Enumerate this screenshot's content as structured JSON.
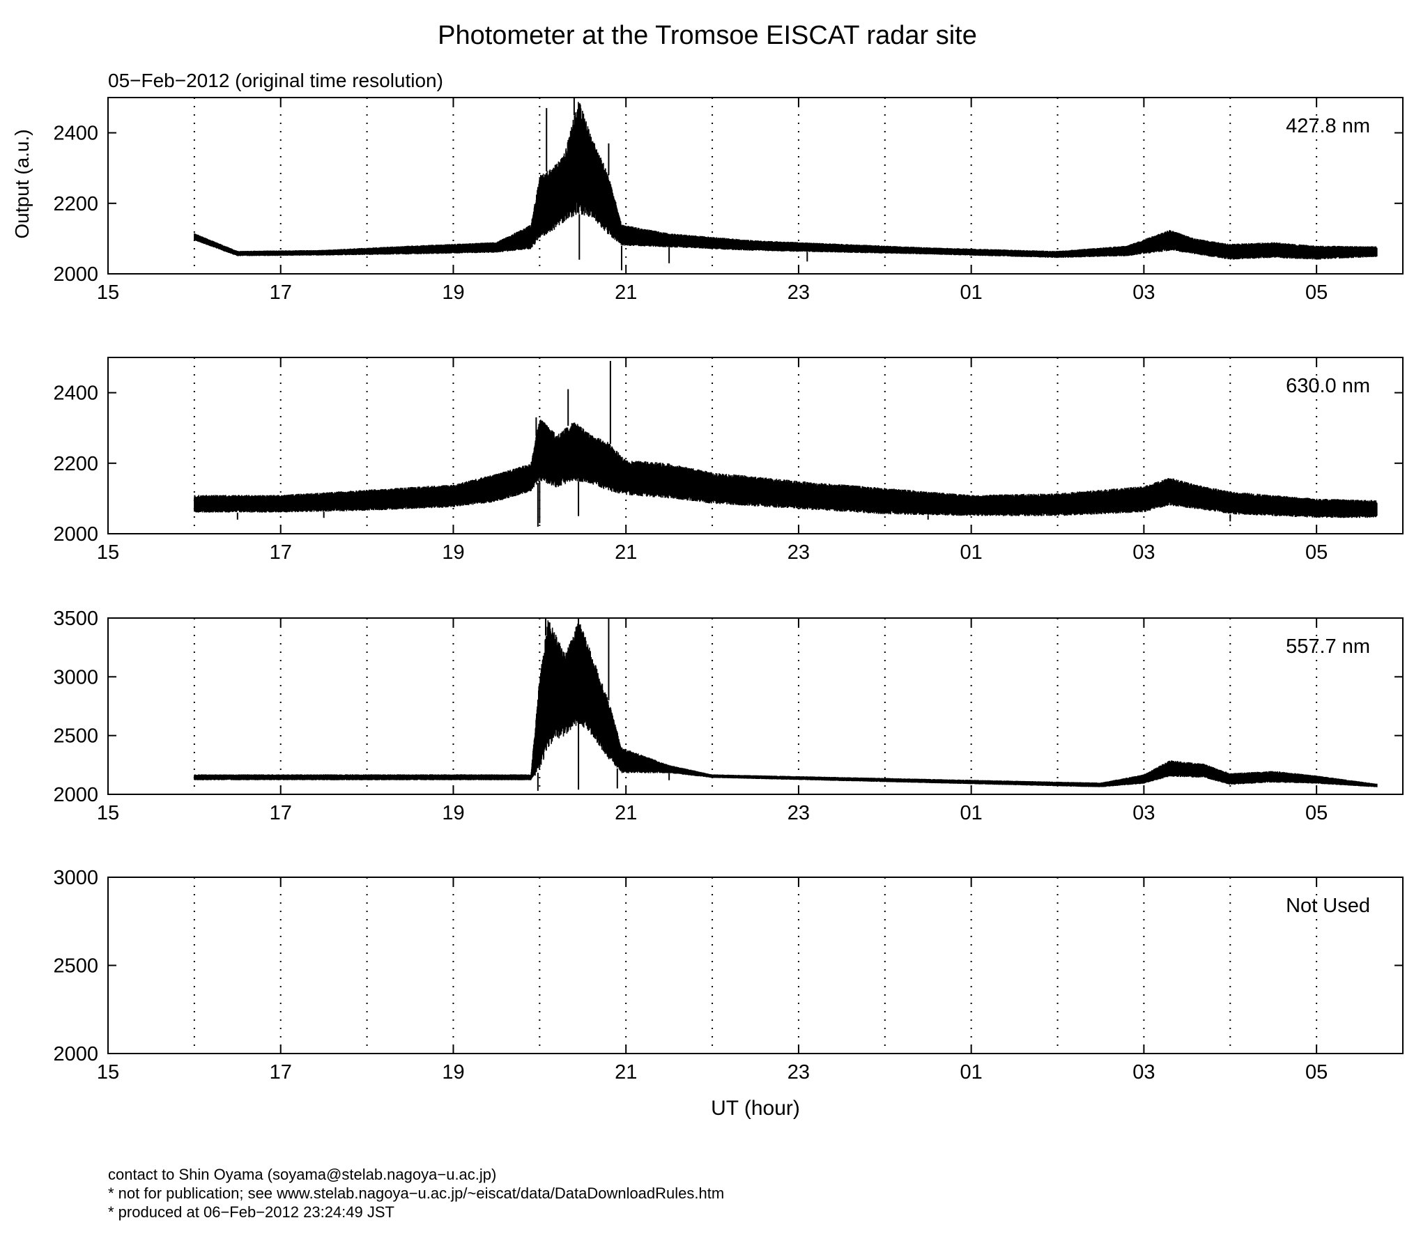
{
  "title": "Photometer at the Tromsoe EISCAT radar site",
  "subtitle": "05−Feb−2012 (original time resolution)",
  "ylabel": "Output (a.u.)",
  "xlabel": "UT (hour)",
  "footer": [
    "contact to Shin Oyama (soyama@stelab.nagoya−u.ac.jp)",
    "* not for publication; see www.stelab.nagoya−u.ac.jp/~eiscat/data/DataDownloadRules.htm",
    "* produced at 06−Feb−2012 23:24:49 JST"
  ],
  "chart_data": [
    {
      "type": "line",
      "label": "427.8 nm",
      "xlim": [
        15,
        30
      ],
      "ylim": [
        2000,
        2500
      ],
      "yticks": [
        2000,
        2200,
        2400
      ],
      "xticks": [
        "15",
        "17",
        "19",
        "21",
        "23",
        "01",
        "03",
        "05"
      ],
      "grid": "dotted vertical, hourly",
      "x": [
        16.0,
        16.1,
        16.3,
        16.5,
        17.0,
        17.5,
        18.0,
        18.5,
        19.0,
        19.5,
        19.8,
        19.9,
        19.95,
        20.0,
        20.1,
        20.2,
        20.3,
        20.4,
        20.45,
        20.5,
        20.6,
        20.7,
        20.8,
        20.9,
        21.0,
        21.5,
        22.0,
        22.5,
        23.0,
        23.5,
        24.0,
        25.0,
        26.0,
        26.5,
        27.0,
        27.2,
        27.3,
        27.5,
        27.7,
        27.8,
        28.0,
        28.2,
        28.4,
        28.5,
        28.7,
        29.0,
        29.4,
        29.7
      ],
      "y": [
        2105,
        2080,
        2065,
        2058,
        2055,
        2060,
        2065,
        2068,
        2070,
        2075,
        2080,
        2090,
        2200,
        2230,
        2180,
        2190,
        2240,
        2300,
        2400,
        2270,
        2290,
        2230,
        2180,
        2140,
        2100,
        2095,
        2085,
        2078,
        2072,
        2068,
        2063,
        2058,
        2055,
        2058,
        2065,
        2075,
        2110,
        2080,
        2090,
        2070,
        2065,
        2045,
        2070,
        2075,
        2060,
        2062,
        2058,
        2062
      ],
      "envelope": [
        [
          16.0,
          2095,
          2115
        ],
        [
          16.5,
          2050,
          2065
        ],
        [
          17.5,
          2052,
          2068
        ],
        [
          18.5,
          2055,
          2080
        ],
        [
          19.5,
          2060,
          2090
        ],
        [
          19.9,
          2070,
          2140
        ],
        [
          20.0,
          2100,
          2280
        ],
        [
          20.15,
          2120,
          2300
        ],
        [
          20.3,
          2150,
          2350
        ],
        [
          20.45,
          2170,
          2500
        ],
        [
          20.6,
          2160,
          2390
        ],
        [
          20.8,
          2110,
          2280
        ],
        [
          20.95,
          2080,
          2140
        ],
        [
          21.5,
          2075,
          2115
        ],
        [
          22.5,
          2065,
          2095
        ],
        [
          23.5,
          2060,
          2085
        ],
        [
          24.5,
          2055,
          2075
        ],
        [
          26.0,
          2045,
          2065
        ],
        [
          26.8,
          2050,
          2080
        ],
        [
          27.3,
          2065,
          2125
        ],
        [
          27.6,
          2055,
          2100
        ],
        [
          28.0,
          2040,
          2085
        ],
        [
          28.5,
          2045,
          2090
        ],
        [
          29.0,
          2040,
          2080
        ],
        [
          29.7,
          2048,
          2078
        ]
      ],
      "spikes": [
        [
          20.08,
          2470
        ],
        [
          20.4,
          2500
        ],
        [
          20.57,
          2390
        ],
        [
          20.8,
          2370
        ],
        [
          20.46,
          2040
        ],
        [
          20.95,
          2010
        ],
        [
          21.5,
          2030
        ],
        [
          23.1,
          2035
        ]
      ]
    },
    {
      "type": "line",
      "label": "630.0 nm",
      "xlim": [
        15,
        30
      ],
      "ylim": [
        2000,
        2500
      ],
      "yticks": [
        2000,
        2200,
        2400
      ],
      "xticks": [
        "15",
        "17",
        "19",
        "21",
        "23",
        "01",
        "03",
        "05"
      ],
      "grid": "dotted vertical, hourly",
      "x": [
        16.0,
        17.0,
        18.0,
        19.0,
        19.5,
        19.9,
        20.0,
        20.2,
        20.4,
        20.6,
        20.8,
        21.0,
        21.5,
        22.0,
        23.0,
        24.0,
        25.0,
        26.0,
        27.0,
        27.3,
        27.6,
        28.0,
        29.0,
        29.7
      ],
      "y": [
        2080,
        2080,
        2090,
        2100,
        2120,
        2160,
        2240,
        2180,
        2200,
        2200,
        2170,
        2160,
        2150,
        2130,
        2110,
        2095,
        2080,
        2085,
        2100,
        2120,
        2100,
        2090,
        2070,
        2065
      ],
      "envelope": [
        [
          16.0,
          2060,
          2110
        ],
        [
          17.0,
          2060,
          2110
        ],
        [
          18.0,
          2065,
          2125
        ],
        [
          19.0,
          2075,
          2140
        ],
        [
          19.5,
          2090,
          2170
        ],
        [
          19.9,
          2120,
          2200
        ],
        [
          20.0,
          2150,
          2330
        ],
        [
          20.2,
          2130,
          2280
        ],
        [
          20.4,
          2150,
          2320
        ],
        [
          20.6,
          2140,
          2280
        ],
        [
          20.8,
          2120,
          2260
        ],
        [
          21.0,
          2110,
          2210
        ],
        [
          21.5,
          2100,
          2200
        ],
        [
          22.0,
          2085,
          2175
        ],
        [
          23.0,
          2070,
          2150
        ],
        [
          24.0,
          2055,
          2130
        ],
        [
          25.0,
          2050,
          2110
        ],
        [
          26.0,
          2050,
          2115
        ],
        [
          27.0,
          2060,
          2135
        ],
        [
          27.3,
          2080,
          2160
        ],
        [
          27.6,
          2070,
          2140
        ],
        [
          28.0,
          2055,
          2120
        ],
        [
          29.0,
          2045,
          2100
        ],
        [
          29.7,
          2045,
          2095
        ]
      ],
      "spikes": [
        [
          20.33,
          2410
        ],
        [
          20.82,
          2490
        ],
        [
          19.96,
          2330
        ],
        [
          19.98,
          2020
        ],
        [
          20.45,
          2050
        ],
        [
          16.5,
          2040
        ],
        [
          17.5,
          2045
        ],
        [
          24.5,
          2040
        ],
        [
          28.0,
          2035
        ],
        [
          20.0,
          2030
        ]
      ]
    },
    {
      "type": "line",
      "label": "557.7 nm",
      "xlim": [
        15,
        30
      ],
      "ylim": [
        2000,
        3500
      ],
      "yticks": [
        2000,
        2500,
        3000,
        3500
      ],
      "xticks": [
        "15",
        "17",
        "19",
        "21",
        "23",
        "01",
        "03",
        "05"
      ],
      "grid": "dotted vertical, hourly",
      "x": [
        16.0,
        17.0,
        17.5,
        18.0,
        18.5,
        19.0,
        19.5,
        19.9,
        20.0,
        20.05,
        20.1,
        20.2,
        20.3,
        20.35,
        20.4,
        20.5,
        20.6,
        20.7,
        20.8,
        20.9,
        21.0,
        21.5,
        22.0,
        23.0,
        24.0,
        25.0,
        26.0,
        26.5,
        27.0,
        27.3,
        27.5,
        27.7,
        27.9,
        28.0,
        28.3,
        28.5,
        29.0,
        29.7
      ],
      "y": [
        2075,
        2075,
        2085,
        2105,
        2115,
        2105,
        2125,
        2150,
        2600,
        2900,
        2700,
        2800,
        2750,
        3050,
        3000,
        2950,
        3000,
        2750,
        2600,
        2450,
        2200,
        2210,
        2150,
        2120,
        2095,
        2080,
        2075,
        2080,
        2130,
        2230,
        2180,
        2210,
        2130,
        2120,
        2140,
        2170,
        2130,
        2075
      ],
      "envelope": [
        [
          19.9,
          2120,
          2170
        ],
        [
          20.0,
          2200,
          3000
        ],
        [
          20.1,
          2400,
          3500
        ],
        [
          20.3,
          2500,
          3200
        ],
        [
          20.45,
          2600,
          3500
        ],
        [
          20.6,
          2500,
          3200
        ],
        [
          20.8,
          2300,
          2800
        ],
        [
          20.95,
          2180,
          2400
        ],
        [
          21.5,
          2180,
          2250
        ],
        [
          22.0,
          2140,
          2170
        ],
        [
          26.5,
          2060,
          2100
        ],
        [
          27.0,
          2090,
          2170
        ],
        [
          27.3,
          2150,
          2290
        ],
        [
          27.7,
          2140,
          2260
        ],
        [
          28.0,
          2080,
          2180
        ],
        [
          28.5,
          2100,
          2200
        ],
        [
          29.0,
          2090,
          2160
        ],
        [
          29.7,
          2060,
          2090
        ]
      ],
      "spikes": [
        [
          20.07,
          3500
        ],
        [
          20.8,
          3500
        ],
        [
          20.45,
          3500
        ],
        [
          19.98,
          2030
        ],
        [
          20.45,
          2040
        ],
        [
          20.9,
          2050
        ],
        [
          21.5,
          2120
        ]
      ]
    },
    {
      "type": "line",
      "label": "Not Used",
      "xlim": [
        15,
        30
      ],
      "ylim": [
        2000,
        3000
      ],
      "yticks": [
        2000,
        2500,
        3000
      ],
      "xticks": [
        "15",
        "17",
        "19",
        "21",
        "23",
        "01",
        "03",
        "05"
      ],
      "grid": "dotted vertical, hourly",
      "x": [],
      "y": []
    }
  ]
}
